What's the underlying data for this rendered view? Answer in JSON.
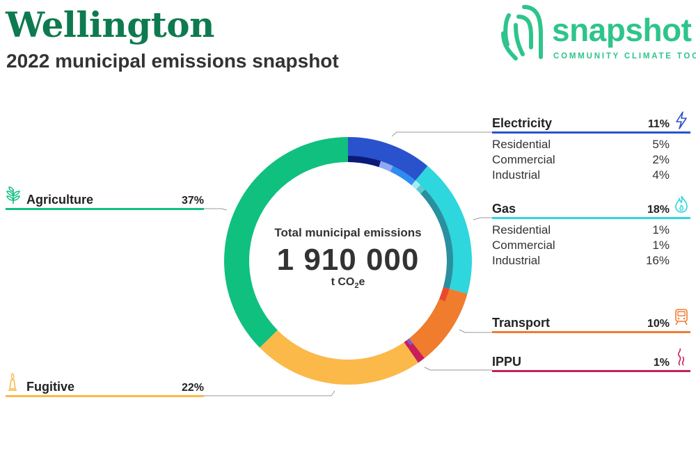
{
  "header": {
    "title": "Wellington",
    "subtitle": "2022 municipal emissions snapshot"
  },
  "logo": {
    "word": "snapshot",
    "tagline": "COMMUNITY CLIMATE TOOL",
    "color": "#2ec48b"
  },
  "center": {
    "label": "Total municipal emissions",
    "value": "1 910 000",
    "unit_prefix": "t CO",
    "unit_sub": "2",
    "unit_suffix": "e"
  },
  "chart_data": {
    "type": "pie",
    "variant": "donut",
    "unit": "%",
    "sectors": [
      {
        "name": "Electricity",
        "value": 11,
        "color": "#2a52cc",
        "icon": "lightning-icon",
        "subsectors": [
          {
            "name": "Residential",
            "value": 5,
            "color": "#0b1a78"
          },
          {
            "name": "Commercial",
            "value": 2,
            "color": "#8fa9f0"
          },
          {
            "name": "Industrial",
            "value": 4,
            "color": "#2f8cf0"
          }
        ]
      },
      {
        "name": "Gas",
        "value": 18,
        "color": "#2ed6dd",
        "icon": "flame-icon",
        "subsectors": [
          {
            "name": "Residential",
            "value": 1,
            "color": "#a8eef0"
          },
          {
            "name": "Commercial",
            "value": 1,
            "color": "#5cc9d3"
          },
          {
            "name": "Industrial",
            "value": 16,
            "color": "#2a8f9f"
          }
        ]
      },
      {
        "name": "Transport",
        "value": 10,
        "color": "#f07c2e",
        "icon": "train-icon",
        "subsectors": [
          {
            "name": "",
            "value": 2,
            "color": "#e84a2e"
          },
          {
            "name": "",
            "value": 8,
            "color": "#f07c2e"
          }
        ]
      },
      {
        "name": "IPPU",
        "value": 1,
        "color": "#c81e5a",
        "icon": "smoke-icon",
        "subsectors": [
          {
            "name": "",
            "value": 0.5,
            "color": "#7b5bd6"
          },
          {
            "name": "",
            "value": 0.5,
            "color": "#c81e5a"
          }
        ]
      },
      {
        "name": "Fugitive",
        "value": 22,
        "color": "#fbb94a",
        "icon": "flare-icon",
        "subsectors": []
      },
      {
        "name": "Agriculture",
        "value": 37,
        "color": "#10c07f",
        "icon": "sprout-icon",
        "subsectors": []
      }
    ]
  },
  "panels": {
    "electricity": {
      "label": "Electricity",
      "pct": "11%",
      "color": "#2a52cc",
      "rows": [
        {
          "l": "Residential",
          "p": "5%"
        },
        {
          "l": "Commercial",
          "p": "2%"
        },
        {
          "l": "Industrial",
          "p": "4%"
        }
      ]
    },
    "gas": {
      "label": "Gas",
      "pct": "18%",
      "color": "#2ed6dd",
      "rows": [
        {
          "l": "Residential",
          "p": "1%"
        },
        {
          "l": "Commercial",
          "p": "1%"
        },
        {
          "l": "Industrial",
          "p": "16%"
        }
      ]
    },
    "transport": {
      "label": "Transport",
      "pct": "10%",
      "color": "#f07c2e"
    },
    "ippu": {
      "label": "IPPU",
      "pct": "1%",
      "color": "#c81e5a"
    },
    "agriculture": {
      "label": "Agriculture",
      "pct": "37%",
      "color": "#10c07f"
    },
    "fugitive": {
      "label": "Fugitive",
      "pct": "22%",
      "color": "#fbb94a"
    }
  }
}
